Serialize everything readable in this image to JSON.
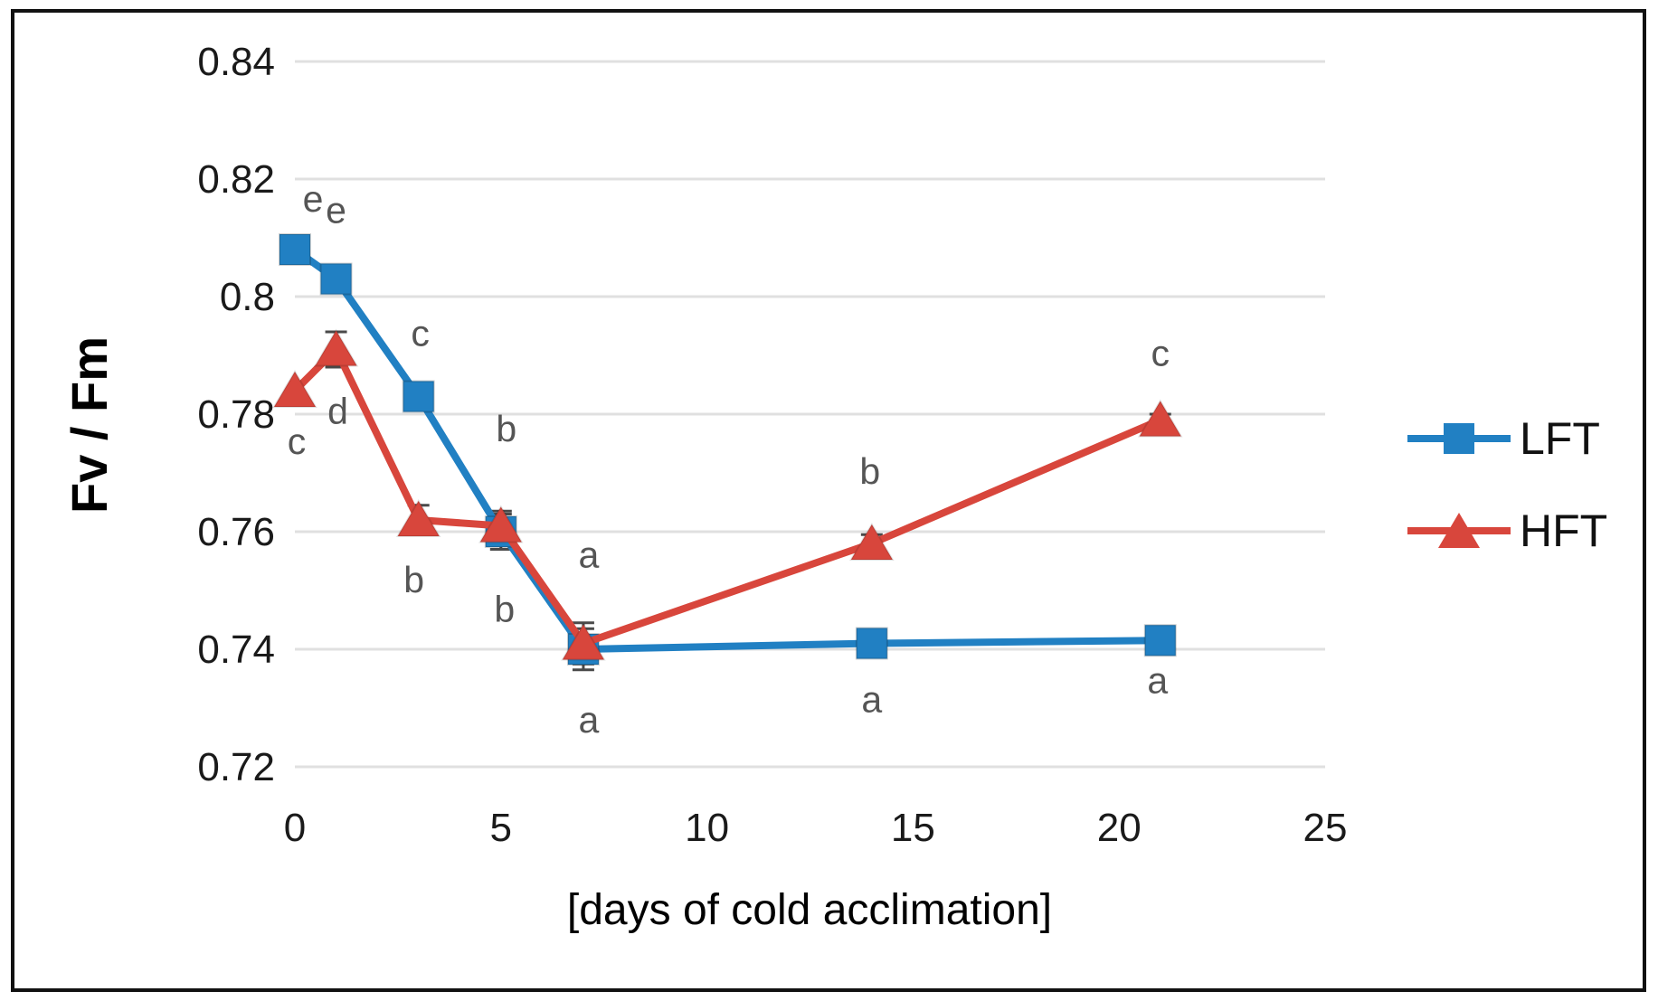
{
  "figure": {
    "y_axis_title": "Fv / Fm",
    "x_axis_title": "[days of cold acclimation]",
    "background": "#ffffff",
    "border_color": "#111111",
    "gridline_color": "#e0e0e0",
    "letter_color": "#555555",
    "error_bar_color": "#4a4a4a"
  },
  "legend": {
    "position": "right-middle",
    "items": [
      {
        "label": "LFT",
        "color": "#2180c3",
        "marker": "square"
      },
      {
        "label": "HFT",
        "color": "#d8463c",
        "marker": "triangle"
      }
    ]
  },
  "chart_data": {
    "type": "line",
    "title": "",
    "xlabel": "[days of cold acclimation]",
    "ylabel": "Fv / Fm",
    "xlim": [
      0,
      25
    ],
    "ylim": [
      0.72,
      0.84
    ],
    "x_ticks": [
      0,
      5,
      10,
      15,
      20,
      25
    ],
    "x_tick_labels": [
      "0",
      "5",
      "10",
      "15",
      "20",
      "25"
    ],
    "y_ticks": [
      0.72,
      0.74,
      0.76,
      0.78,
      0.8,
      0.82,
      0.84
    ],
    "y_tick_labels": [
      "0.72",
      "0.74",
      "0.76",
      "0.78",
      "0.8",
      "0.82",
      "0.84"
    ],
    "grid": true,
    "legend_position": "right",
    "x": [
      0,
      1,
      3,
      5,
      7,
      14,
      21
    ],
    "series": [
      {
        "name": "LFT",
        "color": "#2180c3",
        "marker": "square",
        "values": [
          0.808,
          0.803,
          0.783,
          0.76,
          0.74,
          0.741,
          0.7415
        ],
        "errors": [
          0,
          0,
          0.002,
          0.003,
          0.0035,
          0,
          0
        ],
        "letters": [
          "e",
          "e",
          "c",
          "b",
          "a",
          "a",
          "a"
        ],
        "letter_offsets": [
          [
            20,
            -42
          ],
          [
            0,
            -62
          ],
          [
            2,
            -56
          ],
          [
            6,
            -100
          ],
          [
            6,
            92
          ],
          [
            0,
            76
          ],
          [
            -3,
            58
          ]
        ]
      },
      {
        "name": "HFT",
        "color": "#d8463c",
        "marker": "triangle",
        "values": [
          0.784,
          0.791,
          0.762,
          0.761,
          0.741,
          0.758,
          0.779
        ],
        "errors": [
          0,
          0.003,
          0.0025,
          0.0025,
          0.0035,
          0.0015,
          0.001
        ],
        "letters": [
          "c",
          "d",
          "b",
          "b",
          "a",
          "b",
          "c"
        ],
        "letter_offsets": [
          [
            2,
            70
          ],
          [
            2,
            82
          ],
          [
            -5,
            80
          ],
          [
            4,
            106
          ],
          [
            6,
            -84
          ],
          [
            -2,
            -66
          ],
          [
            0,
            -60
          ]
        ]
      }
    ]
  }
}
